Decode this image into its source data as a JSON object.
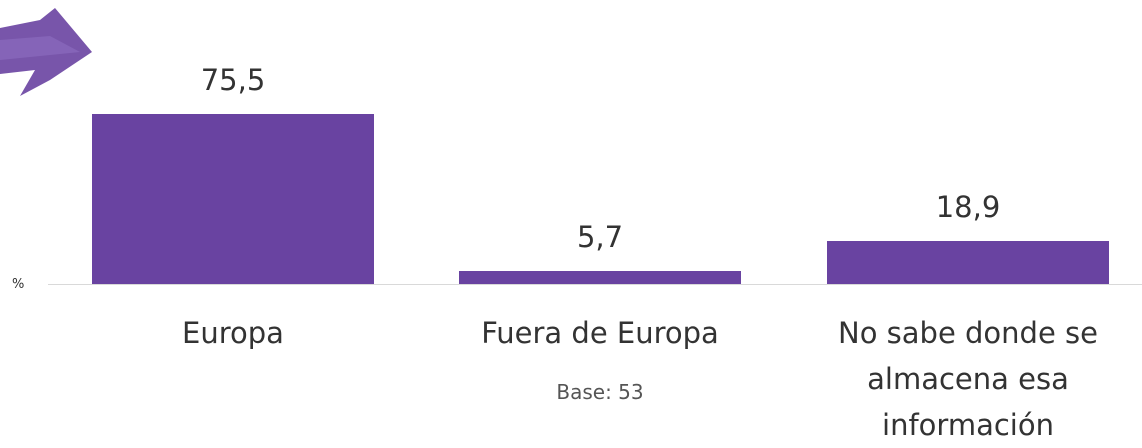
{
  "chart_data": {
    "type": "bar",
    "categories": [
      "Europa",
      "Fuera de Europa",
      "No sabe donde se almacena esa información"
    ],
    "values": [
      75.5,
      5.7,
      18.9
    ],
    "value_labels": [
      "75,5",
      "5,7",
      "18,9"
    ],
    "color": "#6943a1",
    "unit_label": "%",
    "annotation": "Base: 53"
  }
}
